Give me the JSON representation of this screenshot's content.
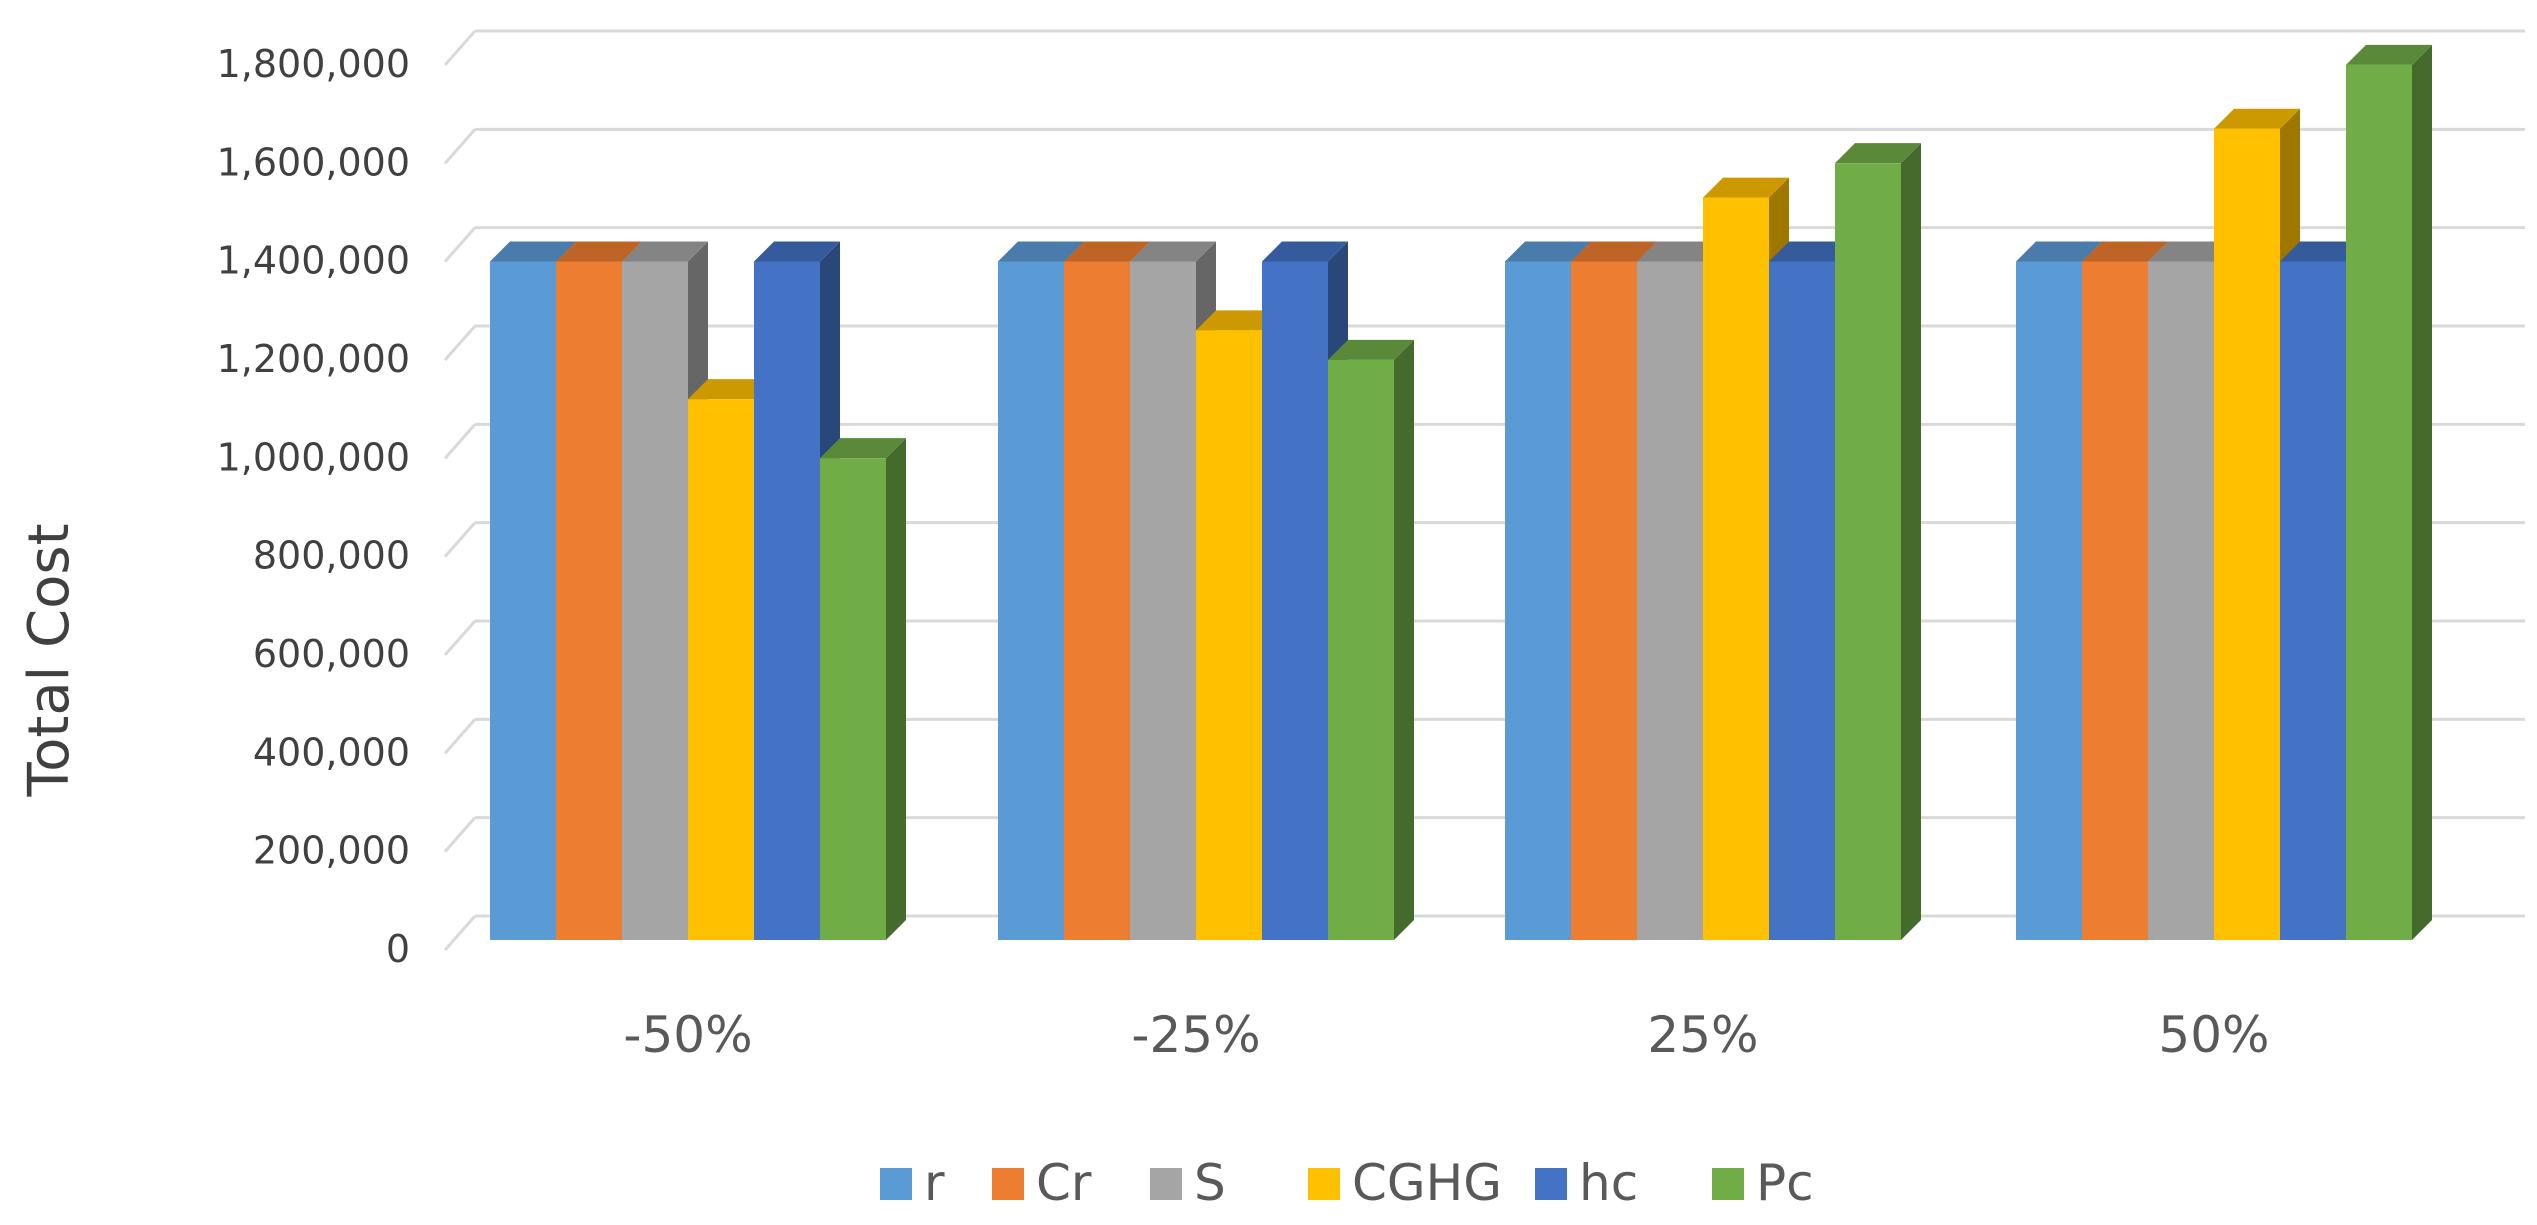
{
  "chart_data": {
    "type": "bar",
    "style": "3d-clustered-column",
    "title": "",
    "xlabel": "",
    "ylabel": "Total Cost",
    "categories": [
      "-50%",
      "-25%",
      "25%",
      "50%"
    ],
    "ylim": [
      0,
      1800000
    ],
    "yticks": [
      0,
      200000,
      400000,
      600000,
      800000,
      1000000,
      1200000,
      1400000,
      1600000,
      1800000
    ],
    "ytick_labels": [
      "0",
      "200,000",
      "400,000",
      "600,000",
      "800,000",
      "1,000,000",
      "1,200,000",
      "1,400,000",
      "1,600,000",
      "1,800,000"
    ],
    "grid": true,
    "legend_position": "bottom",
    "series": [
      {
        "name": "r",
        "color": "#5B9BD5",
        "values": [
          1380000,
          1380000,
          1380000,
          1380000
        ]
      },
      {
        "name": "Cr",
        "color": "#ED7D31",
        "values": [
          1380000,
          1380000,
          1380000,
          1380000
        ]
      },
      {
        "name": "S",
        "color": "#A5A5A5",
        "values": [
          1380000,
          1380000,
          1380000,
          1380000
        ]
      },
      {
        "name": "CGHG",
        "color": "#FFC000",
        "values": [
          1100000,
          1240000,
          1510000,
          1650000
        ]
      },
      {
        "name": "hc",
        "color": "#4472C4",
        "values": [
          1380000,
          1380000,
          1380000,
          1380000
        ]
      },
      {
        "name": "Pc",
        "color": "#70AD47",
        "values": [
          980000,
          1180000,
          1580000,
          1780000
        ]
      }
    ]
  }
}
